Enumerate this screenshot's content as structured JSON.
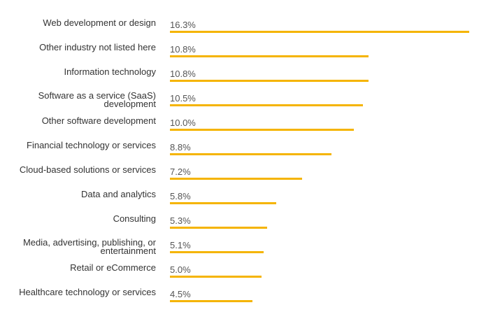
{
  "chart_data": {
    "type": "bar",
    "orientation": "horizontal",
    "categories": [
      "Web development or design",
      "Other industry not listed here",
      "Information technology",
      "Software as a service (SaaS) development",
      "Other software development",
      "Financial technology or services",
      "Cloud-based solutions or services",
      "Data and analytics",
      "Consulting",
      "Media, advertising, publishing, or entertainment",
      "Retail or eCommerce",
      "Healthcare technology or services"
    ],
    "values": [
      16.3,
      10.8,
      10.8,
      10.5,
      10.0,
      8.8,
      7.2,
      5.8,
      5.3,
      5.1,
      5.0,
      4.5
    ],
    "value_labels": [
      "16.3%",
      "10.8%",
      "10.8%",
      "10.5%",
      "10.0%",
      "8.8%",
      "7.2%",
      "5.8%",
      "5.3%",
      "5.1%",
      "5.0%",
      "4.5%"
    ],
    "title": "",
    "xlabel": "",
    "ylabel": "",
    "xlim": [
      0,
      16.3
    ],
    "bar_color": "#f5b400"
  }
}
